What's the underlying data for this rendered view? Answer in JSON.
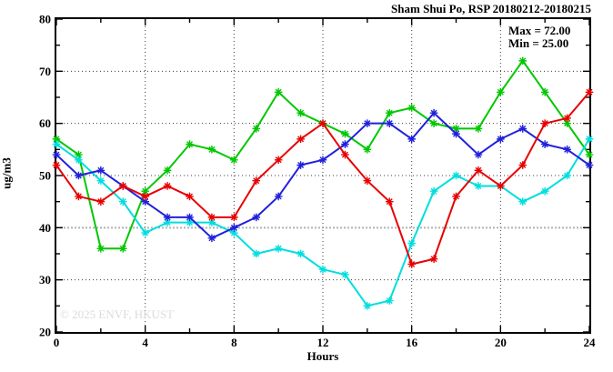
{
  "chart": {
    "title": "Sham Shui Po, RSP 20180212-20180215",
    "annotation": {
      "max_label": "Max = 72.00",
      "min_label": "Min = 25.00"
    },
    "xlabel": "Hours",
    "ylabel": "ug/m3",
    "watermark": "© 2025 ENVF, HKUST"
  },
  "chart_data": {
    "type": "line",
    "title": "Sham Shui Po, RSP 20180212-20180215",
    "xlabel": "Hours",
    "ylabel": "ug/m3",
    "xlim": [
      0,
      24
    ],
    "ylim": [
      20,
      80
    ],
    "x_major_ticks": [
      0,
      4,
      8,
      12,
      16,
      20,
      24
    ],
    "x_minor_step": 2,
    "y_major_ticks": [
      20,
      30,
      40,
      50,
      60,
      70,
      80
    ],
    "y_minor_step": 5,
    "grid_x": [
      4,
      8,
      12,
      16,
      20
    ],
    "grid_y_black": [
      30,
      50,
      60,
      70
    ],
    "grid_y_gray": [
      40
    ],
    "grid_on": true,
    "legend": "none",
    "max": 72.0,
    "min": 25.0,
    "x": [
      0,
      1,
      2,
      3,
      4,
      5,
      6,
      7,
      8,
      9,
      10,
      11,
      12,
      13,
      14,
      15,
      16,
      17,
      18,
      19,
      20,
      21,
      22,
      23,
      24
    ],
    "series": [
      {
        "name": "green-series",
        "color": "#00c800",
        "values": [
          57,
          54,
          36,
          36,
          47,
          51,
          56,
          55,
          53,
          59,
          66,
          62,
          60,
          58,
          55,
          62,
          63,
          60,
          59,
          59,
          66,
          72,
          66,
          60,
          54
        ]
      },
      {
        "name": "cyan-series",
        "color": "#00dede",
        "values": [
          56,
          53,
          49,
          45,
          39,
          41,
          41,
          41,
          39,
          35,
          36,
          35,
          32,
          31,
          25,
          26,
          37,
          47,
          50,
          48,
          48,
          45,
          47,
          50,
          57
        ]
      },
      {
        "name": "blue-series",
        "color": "#2020dd",
        "values": [
          54,
          50,
          51,
          48,
          45,
          42,
          42,
          38,
          40,
          42,
          46,
          52,
          53,
          56,
          60,
          60,
          57,
          62,
          58,
          54,
          57,
          59,
          56,
          55,
          52
        ]
      },
      {
        "name": "red-series",
        "color": "#e80000",
        "values": [
          52,
          46,
          45,
          48,
          46,
          48,
          46,
          42,
          42,
          49,
          53,
          57,
          60,
          54,
          49,
          45,
          33,
          34,
          46,
          51,
          48,
          52,
          60,
          61,
          66
        ]
      }
    ]
  }
}
